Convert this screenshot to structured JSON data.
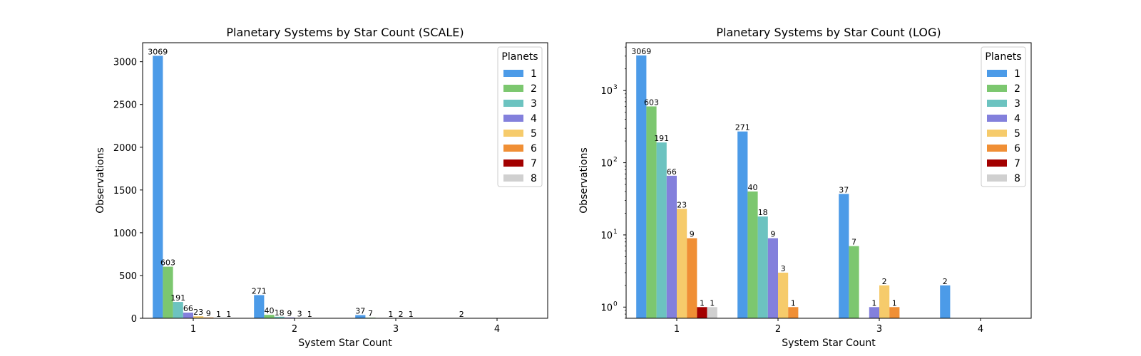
{
  "colors": {
    "1": "#4c9be8",
    "2": "#7cc76f",
    "3": "#6cc3c0",
    "4": "#8380dc",
    "5": "#f6cb6b",
    "6": "#f08f35",
    "7": "#a30000",
    "8": "#d0d0d0"
  },
  "chart_data": [
    {
      "type": "bar",
      "title": "Planetary Systems by Star Count (SCALE)",
      "xlabel": "System Star Count",
      "ylabel": "Observations",
      "yscale": "linear",
      "ylim": [
        0,
        3222
      ],
      "yticks": [
        0,
        500,
        1000,
        1500,
        2000,
        2500,
        3000
      ],
      "ytick_labels": [
        "0",
        "500",
        "1000",
        "1500",
        "2000",
        "2500",
        "3000"
      ],
      "categories": [
        "1",
        "2",
        "3",
        "4"
      ],
      "legend_title": "Planets",
      "legend_loc": "upper right",
      "series": [
        {
          "name": "1",
          "values": [
            3069,
            271,
            37,
            2
          ]
        },
        {
          "name": "2",
          "values": [
            603,
            40,
            7,
            null
          ]
        },
        {
          "name": "3",
          "values": [
            191,
            18,
            null,
            null
          ]
        },
        {
          "name": "4",
          "values": [
            66,
            9,
            1,
            null
          ]
        },
        {
          "name": "5",
          "values": [
            23,
            3,
            2,
            null
          ]
        },
        {
          "name": "6",
          "values": [
            9,
            1,
            1,
            null
          ]
        },
        {
          "name": "7",
          "values": [
            1,
            null,
            null,
            null
          ]
        },
        {
          "name": "8",
          "values": [
            1,
            null,
            null,
            null
          ]
        }
      ]
    },
    {
      "type": "bar",
      "title": "Planetary Systems by Star Count (LOG)",
      "xlabel": "System Star Count",
      "ylabel": "Observations",
      "yscale": "log",
      "ylim": [
        0.7,
        4600
      ],
      "yticks": [
        1,
        10,
        100,
        1000
      ],
      "ytick_labels": [
        [
          "10",
          "0"
        ],
        [
          "10",
          "1"
        ],
        [
          "10",
          "2"
        ],
        [
          "10",
          "3"
        ]
      ],
      "categories": [
        "1",
        "2",
        "3",
        "4"
      ],
      "legend_title": "Planets",
      "legend_loc": "upper right",
      "series": [
        {
          "name": "1",
          "values": [
            3069,
            271,
            37,
            2
          ]
        },
        {
          "name": "2",
          "values": [
            603,
            40,
            7,
            null
          ]
        },
        {
          "name": "3",
          "values": [
            191,
            18,
            null,
            null
          ]
        },
        {
          "name": "4",
          "values": [
            66,
            9,
            1,
            null
          ]
        },
        {
          "name": "5",
          "values": [
            23,
            3,
            2,
            null
          ]
        },
        {
          "name": "6",
          "values": [
            9,
            1,
            1,
            null
          ]
        },
        {
          "name": "7",
          "values": [
            1,
            null,
            null,
            null
          ]
        },
        {
          "name": "8",
          "values": [
            1,
            null,
            null,
            null
          ]
        }
      ]
    }
  ]
}
